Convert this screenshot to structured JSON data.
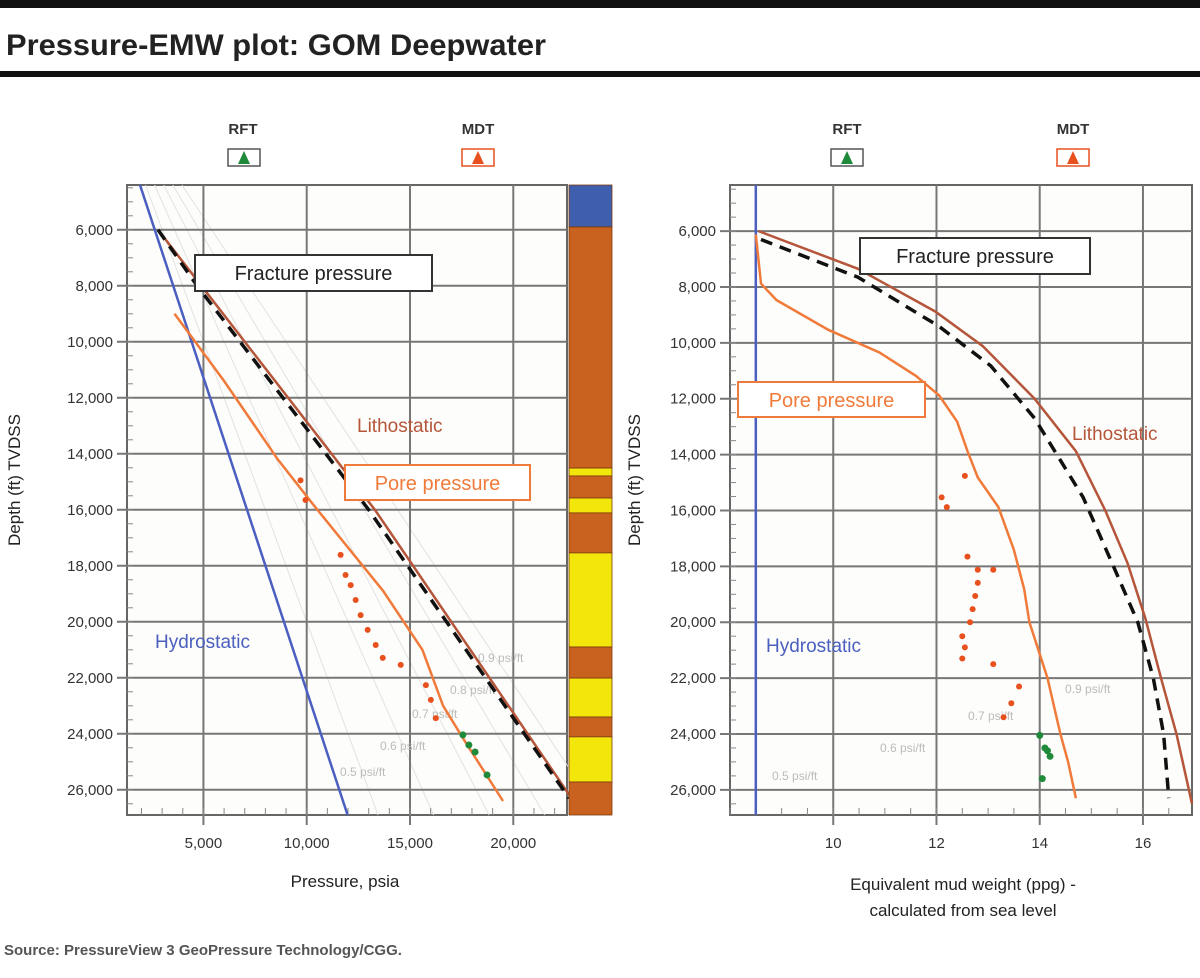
{
  "title": "Pressure-EMW plot: GOM Deepwater",
  "source": "Source: PressureView 3 GeoPressure Technology/CGG.",
  "colors": {
    "hydrostatic": "#4a5fbf",
    "lithostatic": "#b5553a",
    "fracture": "#111111",
    "pore": "#f07a3a",
    "mdt": "#e8501e",
    "rft": "#1e8a3a",
    "shale": "#c8621e",
    "sand": "#f2e60a",
    "water": "#3f5fae"
  },
  "legend": [
    {
      "label": "RFT",
      "marker": "triangle",
      "color": "#1e8a3a"
    },
    {
      "label": "MDT",
      "marker": "triangle",
      "color": "#e8501e"
    }
  ],
  "chart_data": [
    {
      "type": "line",
      "xlabel": "Pressure, psia",
      "ylabel": "Depth (ft) TVDSS",
      "xlim": [
        1300,
        22600
      ],
      "ylim": [
        4400,
        26900
      ],
      "y_inverted": true,
      "grid": true,
      "xticks": [
        5000,
        10000,
        15000,
        20000
      ],
      "xtick_labels": [
        "5,000",
        "10,000",
        "15,000",
        "20,000"
      ],
      "yticks": [
        6000,
        8000,
        10000,
        12000,
        14000,
        16000,
        18000,
        20000,
        22000,
        24000,
        26000
      ],
      "ytick_labels": [
        "6,000",
        "8,000",
        "10,000",
        "12,000",
        "14,000",
        "16,000",
        "18,000",
        "20,000",
        "22,000",
        "24,000",
        "26,000"
      ],
      "series": [
        {
          "name": "Hydrostatic",
          "style": "solid",
          "color": "#4a5fbf",
          "points": [
            [
              1930,
              4400
            ],
            [
              11980,
              26900
            ]
          ]
        },
        {
          "name": "Lithostatic",
          "style": "solid",
          "color": "#b5553a",
          "points": [
            [
              2800,
              6000
            ],
            [
              4900,
              8000
            ],
            [
              13300,
              16000
            ],
            [
              23000,
              26500
            ]
          ]
        },
        {
          "name": "Fracture pressure",
          "style": "dashed",
          "color": "#111111",
          "points": [
            [
              2800,
              6000
            ],
            [
              4700,
              8000
            ],
            [
              13000,
              16000
            ],
            [
              22700,
              26300
            ]
          ]
        },
        {
          "name": "Pore pressure",
          "style": "solid",
          "color": "#f07a3a",
          "points": [
            [
              3600,
              9000
            ],
            [
              6000,
              11400
            ],
            [
              8600,
              14200
            ],
            [
              10300,
              15800
            ],
            [
              13700,
              18900
            ],
            [
              15600,
              21000
            ],
            [
              16600,
              23000
            ],
            [
              17600,
              24200
            ],
            [
              19500,
              26400
            ]
          ]
        }
      ],
      "mdt_points": [
        [
          9700,
          14950
        ],
        [
          9940,
          15650
        ],
        [
          11640,
          17610
        ],
        [
          11880,
          18330
        ],
        [
          12130,
          18690
        ],
        [
          12370,
          19220
        ],
        [
          12610,
          19760
        ],
        [
          12950,
          20290
        ],
        [
          13340,
          20830
        ],
        [
          13680,
          21290
        ],
        [
          14550,
          21540
        ],
        [
          15770,
          22260
        ],
        [
          16010,
          22790
        ],
        [
          16250,
          23440
        ]
      ],
      "rft_points": [
        [
          17560,
          24040
        ],
        [
          17850,
          24400
        ],
        [
          18150,
          24650
        ],
        [
          18730,
          25470
        ]
      ],
      "gradient_labels": [
        "0.9 psi/ft",
        "0.8 psi/ft",
        "0.7 psi/ft",
        "0.6 psi/ft",
        "0.5 psi/ft"
      ],
      "gradients": [
        0.5,
        0.6,
        0.7,
        0.8,
        0.9
      ],
      "annotations": [
        "Fracture pressure",
        "Lithostatic",
        "Pore pressure",
        "Hydrostatic"
      ],
      "lithology": [
        {
          "top": 4400,
          "base": 5900,
          "type": "water"
        },
        {
          "top": 5900,
          "base": 14510,
          "type": "shale"
        },
        {
          "top": 14510,
          "base": 14790,
          "type": "sand"
        },
        {
          "top": 14790,
          "base": 15580,
          "type": "shale"
        },
        {
          "top": 15580,
          "base": 16110,
          "type": "sand"
        },
        {
          "top": 16110,
          "base": 17540,
          "type": "shale"
        },
        {
          "top": 17540,
          "base": 20900,
          "type": "sand"
        },
        {
          "top": 20900,
          "base": 22010,
          "type": "shale"
        },
        {
          "top": 22010,
          "base": 23400,
          "type": "sand"
        },
        {
          "top": 23400,
          "base": 24110,
          "type": "shale"
        },
        {
          "top": 24110,
          "base": 25720,
          "type": "sand"
        },
        {
          "top": 25720,
          "base": 26900,
          "type": "shale"
        }
      ]
    },
    {
      "type": "line",
      "xlabel": "Equivalent mud weight (ppg) - calculated from sea level",
      "xlabel_lines": [
        "Equivalent mud weight (ppg) -",
        "calculated from sea level"
      ],
      "ylabel": "Depth (ft) TVDSS",
      "xlim": [
        8.0,
        16.95
      ],
      "ylim": [
        4350,
        26900
      ],
      "y_inverted": true,
      "grid": true,
      "xticks": [
        10,
        12,
        14,
        16
      ],
      "xtick_labels": [
        "10",
        "12",
        "14",
        "16"
      ],
      "yticks": [
        6000,
        8000,
        10000,
        12000,
        14000,
        16000,
        18000,
        20000,
        22000,
        24000,
        26000
      ],
      "ytick_labels": [
        "6,000",
        "8,000",
        "10,000",
        "12,000",
        "14,000",
        "16,000",
        "18,000",
        "20,000",
        "22,000",
        "24,000",
        "26,000"
      ],
      "series": [
        {
          "name": "Hydrostatic",
          "style": "solid",
          "color": "#4a5fbf",
          "points": [
            [
              8.5,
              4350
            ],
            [
              8.5,
              26900
            ]
          ]
        },
        {
          "name": "Lithostatic",
          "style": "solid",
          "color": "#b5553a",
          "points": [
            [
              8.55,
              6000
            ],
            [
              10.48,
              7350
            ],
            [
              11.98,
              8880
            ],
            [
              12.9,
              10120
            ],
            [
              13.9,
              12000
            ],
            [
              14.7,
              13880
            ],
            [
              15.27,
              16000
            ],
            [
              15.7,
              17880
            ],
            [
              16.05,
              19880
            ],
            [
              16.35,
              22000
            ],
            [
              16.65,
              24000
            ],
            [
              16.95,
              26500
            ]
          ]
        },
        {
          "name": "Fracture pressure",
          "style": "dashed",
          "color": "#111111",
          "points": [
            [
              8.6,
              6300
            ],
            [
              10.48,
              7650
            ],
            [
              12.05,
              9410
            ],
            [
              13.05,
              10820
            ],
            [
              13.9,
              12700
            ],
            [
              14.84,
              15530
            ],
            [
              15.4,
              17880
            ],
            [
              15.9,
              20000
            ],
            [
              16.2,
              22000
            ],
            [
              16.4,
              24000
            ],
            [
              16.5,
              26300
            ]
          ]
        },
        {
          "name": "Pore pressure",
          "style": "solid",
          "color": "#f07a3a",
          "points": [
            [
              8.5,
              6120
            ],
            [
              8.6,
              7880
            ],
            [
              8.9,
              8470
            ],
            [
              9.9,
              9530
            ],
            [
              10.9,
              10350
            ],
            [
              11.6,
              11180
            ],
            [
              12.05,
              11880
            ],
            [
              12.4,
              12820
            ],
            [
              12.6,
              13880
            ],
            [
              12.8,
              14820
            ],
            [
              13.2,
              15880
            ],
            [
              13.5,
              17410
            ],
            [
              13.7,
              18820
            ],
            [
              13.8,
              20000
            ],
            [
              14.15,
              22000
            ],
            [
              14.4,
              24000
            ],
            [
              14.55,
              25000
            ],
            [
              14.7,
              26300
            ]
          ]
        }
      ],
      "mdt_points": [
        [
          12.55,
          14760
        ],
        [
          12.1,
          15530
        ],
        [
          12.2,
          15880
        ],
        [
          12.6,
          17650
        ],
        [
          12.8,
          18120
        ],
        [
          13.1,
          18120
        ],
        [
          12.8,
          18590
        ],
        [
          12.75,
          19060
        ],
        [
          12.7,
          19530
        ],
        [
          12.65,
          20000
        ],
        [
          12.5,
          20500
        ],
        [
          12.55,
          20900
        ],
        [
          12.5,
          21300
        ],
        [
          13.1,
          21500
        ],
        [
          13.3,
          23400
        ],
        [
          13.45,
          22900
        ],
        [
          13.6,
          22300
        ]
      ],
      "rft_points": [
        [
          14.0,
          24050
        ],
        [
          14.1,
          24500
        ],
        [
          14.2,
          24800
        ],
        [
          14.15,
          24600
        ],
        [
          14.05,
          25600
        ]
      ],
      "gradient_labels": [
        "0.9 psi/ft",
        "0.7 psi/ft",
        "0.6 psi/ft",
        "0.5 psi/ft"
      ],
      "annotations": [
        "Fracture pressure",
        "Lithostatic",
        "Pore pressure",
        "Hydrostatic"
      ]
    }
  ]
}
